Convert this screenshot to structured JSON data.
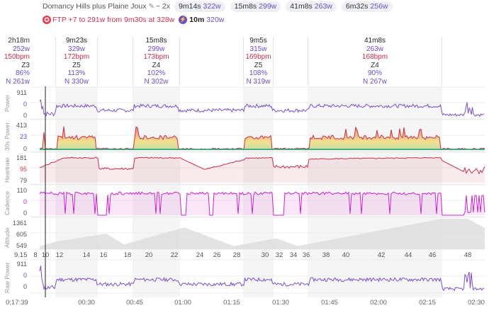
{
  "header": {
    "title": "Domancy Hills plus Plaine Joux",
    "repeat": "~ 2x",
    "intervals": [
      {
        "dur": "9m14s",
        "watts": "322w"
      },
      {
        "dur": "15m8s",
        "watts": "299w"
      },
      {
        "dur": "41m8s",
        "watts": "263w"
      },
      {
        "dur": "6m32s",
        "watts": "256w"
      }
    ],
    "ftp_text": "FTP +7 to 291w from 9m30s at 328w",
    "best_dur": "10m",
    "best_watts": "320w"
  },
  "summary": {
    "dur": "2h18m",
    "power": "252w",
    "hr": "150bpm",
    "zone": "Z3",
    "pct": "86%",
    "np": "N 261w"
  },
  "segments": [
    {
      "dur": "9m23s",
      "power": "329w",
      "hr": "172bpm",
      "zone": "Z5",
      "pct": "113%",
      "np": "N 330w",
      "start": 17,
      "end": 26.3
    },
    {
      "dur": "15m8s",
      "power": "299w",
      "hr": "173bpm",
      "zone": "Z4",
      "pct": "102%",
      "np": "N 302w",
      "start": 20,
      "end": 23.3
    },
    {
      "dur": "9m5s",
      "power": "315w",
      "hr": "169bpm",
      "zone": "Z5",
      "pct": "108%",
      "np": "N 319w",
      "start": 29.1,
      "end": 32.1
    },
    {
      "dur": "41m8s",
      "power": "263w",
      "hr": "168bpm",
      "zone": "Z4",
      "pct": "90%",
      "np": "N 267w",
      "start": 36.1,
      "end": 47.1
    }
  ],
  "charts": {
    "power": {
      "title": "Power",
      "max": "911",
      "mid": "0",
      "min": "0"
    },
    "power30": {
      "title": "30s Power",
      "max": "413",
      "mid": "23",
      "min": "0"
    },
    "heartrate": {
      "title": "Heartrate",
      "max": "181",
      "mid": "95",
      "min": "79"
    },
    "cadence": {
      "title": "Cadence",
      "max": "110",
      "mid": "0",
      "min": "0"
    },
    "altitude": {
      "title": "Altitude",
      "max": "1361",
      "mid": "605",
      "min": "549"
    },
    "rawpower": {
      "title": "Raw Power",
      "max": "911",
      "mid": "0",
      "min": "0"
    }
  },
  "distance_axis": {
    "start": "9.15",
    "labels": [
      "8",
      "10",
      "12",
      "14",
      "16",
      "18",
      "20",
      "22",
      "24",
      "26",
      "28",
      "30",
      "32",
      "34",
      "36",
      "38",
      "40",
      "42",
      "44",
      "46",
      "48"
    ]
  },
  "time_axis": {
    "cursor": "0:17:39",
    "labels": [
      "00:30",
      "00:45",
      "01:00",
      "01:15",
      "01:30",
      "01:45",
      "02:00",
      "02:15",
      "02:30"
    ]
  },
  "colors": {
    "power": "#7b4fd0",
    "hr": "#c9304a",
    "cadence": "#d01fd0",
    "altitude": "#dcdcdc",
    "shade": "#f4f4f4"
  }
}
